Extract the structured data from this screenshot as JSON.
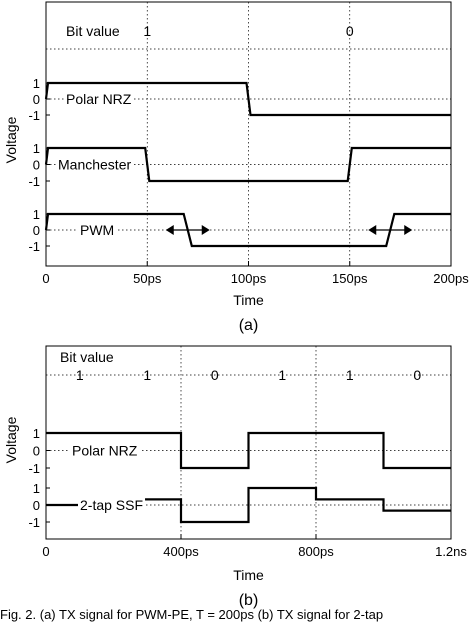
{
  "chart_data": [
    {
      "type": "line",
      "caption": "(a)",
      "xlabel": "Time",
      "ylabel": "Voltage",
      "xlim": [
        0,
        200
      ],
      "x_unit": "ps",
      "x_ticks": [
        {
          "value": 0,
          "label": "0"
        },
        {
          "value": 50,
          "label": "50ps"
        },
        {
          "value": 100,
          "label": "100ps"
        },
        {
          "value": 150,
          "label": "150ps"
        },
        {
          "value": 200,
          "label": "200ps"
        }
      ],
      "grid": true,
      "bit_row": {
        "label": "Bit value",
        "values": [
          {
            "x": 50,
            "text": "1"
          },
          {
            "x": 150,
            "text": "0"
          }
        ]
      },
      "rows": [
        {
          "name": "Polar NRZ",
          "y_ticks": [
            "1",
            "0",
            "-1"
          ],
          "points": [
            [
              0,
              0
            ],
            [
              1,
              1
            ],
            [
              99,
              1
            ],
            [
              101,
              -1
            ],
            [
              200,
              -1
            ]
          ]
        },
        {
          "name": "Manchester",
          "y_ticks": [
            "1",
            "0",
            "-1"
          ],
          "points": [
            [
              0,
              0
            ],
            [
              1,
              1
            ],
            [
              49,
              1
            ],
            [
              51,
              -1
            ],
            [
              149,
              -1
            ],
            [
              151,
              1
            ],
            [
              200,
              1
            ]
          ]
        },
        {
          "name": "PWM",
          "y_ticks": [
            "1",
            "0",
            "-1"
          ],
          "points": [
            [
              0,
              0
            ],
            [
              1,
              1
            ],
            [
              68,
              1
            ],
            [
              72,
              -1
            ],
            [
              168,
              -1
            ],
            [
              172,
              1
            ],
            [
              200,
              1
            ]
          ],
          "arrows": [
            70,
            170
          ]
        }
      ]
    },
    {
      "type": "line",
      "caption": "(b)",
      "xlabel": "Time",
      "ylabel": "Voltage",
      "xlim": [
        0,
        1.2
      ],
      "x_unit": "ns",
      "x_ticks": [
        {
          "value": 0,
          "label": "0"
        },
        {
          "value": 0.4,
          "label": "400ps"
        },
        {
          "value": 0.8,
          "label": "800ps"
        },
        {
          "value": 1.2,
          "label": "1.2ns"
        }
      ],
      "grid": true,
      "bit_row": {
        "label": "Bit value",
        "values": [
          {
            "x": 0.1,
            "text": "1"
          },
          {
            "x": 0.3,
            "text": "1"
          },
          {
            "x": 0.5,
            "text": "0"
          },
          {
            "x": 0.7,
            "text": "1"
          },
          {
            "x": 0.9,
            "text": "1"
          },
          {
            "x": 1.1,
            "text": "0"
          }
        ]
      },
      "rows": [
        {
          "name": "Polar NRZ",
          "y_ticks": [
            "1",
            "0",
            "-1"
          ],
          "points": [
            [
              0,
              1
            ],
            [
              0.4,
              1
            ],
            [
              0.4,
              -1
            ],
            [
              0.6,
              -1
            ],
            [
              0.6,
              1
            ],
            [
              1.0,
              1
            ],
            [
              1.0,
              -1
            ],
            [
              1.2,
              -1
            ]
          ]
        },
        {
          "name": "2-tap SSF",
          "y_ticks": [
            "1",
            "0",
            "-1"
          ],
          "points": [
            [
              0,
              0
            ],
            [
              0.2,
              0
            ],
            [
              0.2,
              0.33
            ],
            [
              0.4,
              0.33
            ],
            [
              0.4,
              -1
            ],
            [
              0.6,
              -1
            ],
            [
              0.6,
              1
            ],
            [
              0.8,
              1
            ],
            [
              0.8,
              0.33
            ],
            [
              1.0,
              0.33
            ],
            [
              1.0,
              -0.33
            ],
            [
              1.2,
              -0.33
            ]
          ]
        }
      ]
    }
  ],
  "footer_text": "Fig. 2. (a) TX signal for PWM-PE, T = 200ps (b) TX signal for 2-tap"
}
